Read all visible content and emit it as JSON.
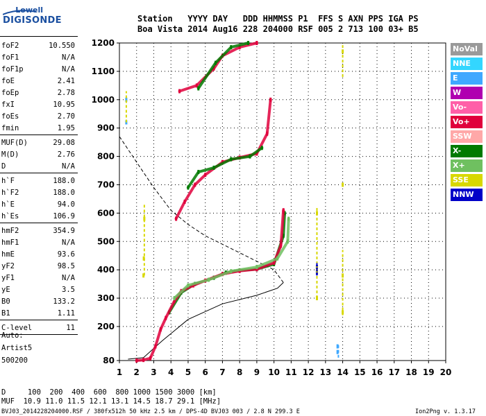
{
  "logo": {
    "top": "Lowell",
    "bottom": "DIGISONDE"
  },
  "header": {
    "line1": "Station   YYYY DAY   DDD HHMMSS P1  FFS S AXN PPS IGA PS",
    "line2": "Boa Vista 2014 Aug16 228 204000 RSF 005 2 713 100 03+ B5"
  },
  "params": [
    {
      "k": "foF2",
      "v": "10.550"
    },
    {
      "k": "foF1",
      "v": "N/A"
    },
    {
      "k": "foF1p",
      "v": "N/A"
    },
    {
      "k": "foE",
      "v": "2.41"
    },
    {
      "k": "foEp",
      "v": "2.78"
    },
    {
      "k": "fxI",
      "v": "10.95"
    },
    {
      "k": "foEs",
      "v": "2.70"
    },
    {
      "k": "fmin",
      "v": "1.95"
    },
    {
      "k": "MUF(D)",
      "v": "29.08"
    },
    {
      "k": "M(D)",
      "v": "2.76"
    },
    {
      "k": "D",
      "v": "N/A"
    },
    {
      "k": "h`F",
      "v": "188.0"
    },
    {
      "k": "h`F2",
      "v": "188.0"
    },
    {
      "k": "h`E",
      "v": "94.0"
    },
    {
      "k": "h`Es",
      "v": "106.9"
    },
    {
      "k": "hmF2",
      "v": "354.9"
    },
    {
      "k": "hmF1",
      "v": "N/A"
    },
    {
      "k": "hmE",
      "v": "93.6"
    },
    {
      "k": "yF2",
      "v": "98.5"
    },
    {
      "k": "yF1",
      "v": "N/A"
    },
    {
      "k": "yE",
      "v": "3.5"
    },
    {
      "k": "B0",
      "v": "133.2"
    },
    {
      "k": "B1",
      "v": "1.11"
    },
    {
      "k": "C-level",
      "v": "11"
    }
  ],
  "auto": [
    "Auto:",
    "Artist5",
    "500200"
  ],
  "legend": [
    {
      "label": "NoVal",
      "color": "#9a9a9a"
    },
    {
      "label": "NNE",
      "color": "#33d6ff"
    },
    {
      "label": "E",
      "color": "#3fa8ff"
    },
    {
      "label": "W",
      "color": "#b000b0"
    },
    {
      "label": "Vo-",
      "color": "#ff5fa8"
    },
    {
      "label": "Vo+",
      "color": "#e0003c"
    },
    {
      "label": "SSW",
      "color": "#ffa8a8"
    },
    {
      "label": "X-",
      "color": "#007a00"
    },
    {
      "label": "X+",
      "color": "#6fc060"
    },
    {
      "label": "SSE",
      "color": "#d8d800"
    },
    {
      "label": "NNW",
      "color": "#0000c8"
    }
  ],
  "footer": {
    "drow": "D     100  200  400  600  800 1000 1500 3000 [km]",
    "mufrow": "MUF  10.9 11.0 11.5 12.1 13.1 14.5 18.7 29.1 [MHz]",
    "info": "BVJ03_2014228204000.RSF / 380fx512h 50 kHz 2.5 km / DPS-4D BVJ03 003 / 2.8 N 299.3 E",
    "version": "Ion2Png v. 1.3.17"
  },
  "chart_data": {
    "type": "scatter",
    "xlim": [
      1,
      20
    ],
    "ylim": [
      80,
      1200
    ],
    "xticks": [
      1,
      2,
      3,
      4,
      5,
      6,
      7,
      8,
      9,
      10,
      11,
      12,
      13,
      14,
      15,
      16,
      17,
      18,
      19,
      20
    ],
    "yticks": [
      80,
      200,
      300,
      400,
      500,
      600,
      700,
      800,
      900,
      1000,
      1100,
      1200
    ],
    "series": [
      {
        "name": "X-",
        "color": "#007a00",
        "points": [
          [
            3.9,
            250
          ],
          [
            4.6,
            320
          ],
          [
            5.4,
            350
          ],
          [
            6.5,
            372
          ],
          [
            7.2,
            390
          ],
          [
            8.0,
            398
          ],
          [
            9.0,
            402
          ],
          [
            10.0,
            420
          ],
          [
            10.55,
            520
          ],
          [
            10.62,
            600
          ]
        ]
      },
      {
        "name": "Vo+",
        "color": "#e0003c",
        "points": [
          [
            2.0,
            80
          ],
          [
            2.4,
            82
          ],
          [
            2.8,
            88
          ],
          [
            3.1,
            130
          ],
          [
            3.4,
            190
          ],
          [
            3.7,
            230
          ],
          [
            4.2,
            290
          ],
          [
            4.6,
            325
          ],
          [
            5.3,
            345
          ],
          [
            6.0,
            362
          ],
          [
            7.0,
            385
          ],
          [
            8.0,
            396
          ],
          [
            9.0,
            402
          ],
          [
            10.0,
            425
          ],
          [
            10.4,
            485
          ],
          [
            10.55,
            610
          ]
        ]
      },
      {
        "name": "X+",
        "color": "#6fc060",
        "points": [
          [
            4.2,
            300
          ],
          [
            5.0,
            345
          ],
          [
            6.2,
            365
          ],
          [
            7.5,
            395
          ],
          [
            9.0,
            410
          ],
          [
            10.2,
            440
          ],
          [
            10.8,
            500
          ],
          [
            10.85,
            580
          ]
        ]
      },
      {
        "name": "Vo+ 2F",
        "color": "#e0003c",
        "points": [
          [
            4.3,
            580
          ],
          [
            4.8,
            640
          ],
          [
            5.4,
            700
          ],
          [
            6.0,
            735
          ],
          [
            7.0,
            780
          ],
          [
            8.0,
            796
          ],
          [
            9.0,
            810
          ],
          [
            9.6,
            880
          ],
          [
            9.8,
            1000
          ]
        ]
      },
      {
        "name": "X- 2F",
        "color": "#007a00",
        "points": [
          [
            5.0,
            690
          ],
          [
            5.6,
            745
          ],
          [
            6.5,
            760
          ],
          [
            7.5,
            790
          ],
          [
            8.6,
            800
          ],
          [
            9.3,
            830
          ]
        ]
      },
      {
        "name": "Vo+ 3F",
        "color": "#e0003c",
        "points": [
          [
            4.5,
            1030
          ],
          [
            5.5,
            1050
          ],
          [
            6.5,
            1110
          ],
          [
            7.0,
            1155
          ],
          [
            8.0,
            1185
          ],
          [
            9.0,
            1200
          ]
        ]
      },
      {
        "name": "X- 3F",
        "color": "#007a00",
        "points": [
          [
            5.6,
            1040
          ],
          [
            6.6,
            1130
          ],
          [
            7.5,
            1185
          ],
          [
            8.5,
            1200
          ]
        ]
      },
      {
        "name": "SSE",
        "color": "#d8d800",
        "points": [
          [
            2.4,
            380
          ],
          [
            2.42,
            440
          ],
          [
            2.45,
            580
          ],
          [
            12.5,
            300
          ],
          [
            12.5,
            400
          ],
          [
            12.5,
            600
          ],
          [
            14.0,
            250
          ],
          [
            14.0,
            380
          ],
          [
            14.0,
            700
          ],
          [
            14.0,
            1170
          ]
        ]
      },
      {
        "name": "NNW",
        "color": "#0000c8",
        "points": [
          [
            12.5,
            410
          ],
          [
            12.5,
            390
          ]
        ]
      },
      {
        "name": "E",
        "color": "#3fa8ff",
        "points": [
          [
            13.7,
            110
          ],
          [
            13.7,
            130
          ],
          [
            1.4,
            920
          ],
          [
            1.4,
            1000
          ]
        ]
      }
    ],
    "profile_true": [
      [
        1.5,
        85
      ],
      [
        2.4,
        90
      ],
      [
        3.5,
        150
      ],
      [
        5.0,
        225
      ],
      [
        7.0,
        280
      ],
      [
        9.0,
        310
      ],
      [
        10.2,
        335
      ],
      [
        10.55,
        355
      ]
    ],
    "profile_dashed": [
      [
        1.0,
        870
      ],
      [
        2.0,
        780
      ],
      [
        3.0,
        690
      ],
      [
        4.0,
        610
      ],
      [
        5.0,
        560
      ],
      [
        6.0,
        520
      ],
      [
        7.0,
        490
      ],
      [
        8.0,
        460
      ],
      [
        9.0,
        430
      ],
      [
        10.0,
        400
      ],
      [
        10.55,
        355
      ]
    ]
  }
}
